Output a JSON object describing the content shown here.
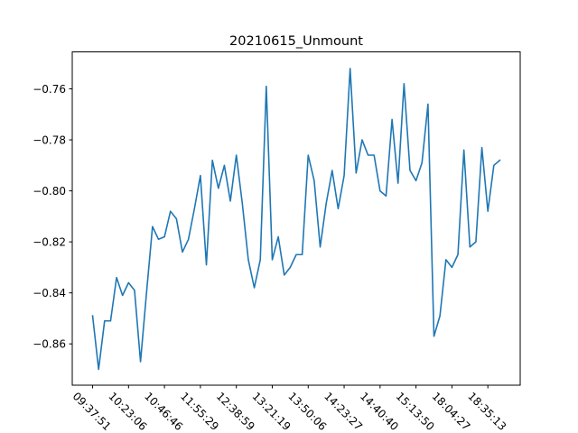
{
  "chart_data": {
    "type": "line",
    "title": "20210615_Unmount",
    "xlabel": "",
    "ylabel": "",
    "x_tick_labels": [
      "09:37:51",
      "10:23:06",
      "10:46:46",
      "11:55:29",
      "12:38:59",
      "13:21:19",
      "13:50:06",
      "14:23:27",
      "14:40:40",
      "15:13:50",
      "18:04:27",
      "18:35:13"
    ],
    "x_tick_every": 6,
    "ylim": [
      -0.8762,
      -0.7455
    ],
    "y_ticks": [
      -0.76,
      -0.78,
      -0.8,
      -0.82,
      -0.84,
      -0.86
    ],
    "y_tick_labels": [
      "−0.76",
      "−0.78",
      "−0.80",
      "−0.82",
      "−0.84",
      "−0.86"
    ],
    "grid": false,
    "legend": "none",
    "line_color": "#1f77b4",
    "series": [
      {
        "values": [
          -0.849,
          -0.87,
          -0.851,
          -0.851,
          -0.834,
          -0.841,
          -0.836,
          -0.839,
          -0.867,
          -0.84,
          -0.814,
          -0.819,
          -0.818,
          -0.808,
          -0.811,
          -0.824,
          -0.819,
          -0.807,
          -0.794,
          -0.829,
          -0.788,
          -0.799,
          -0.79,
          -0.804,
          -0.786,
          -0.805,
          -0.827,
          -0.838,
          -0.827,
          -0.759,
          -0.827,
          -0.818,
          -0.833,
          -0.83,
          -0.825,
          -0.825,
          -0.786,
          -0.796,
          -0.822,
          -0.805,
          -0.792,
          -0.807,
          -0.794,
          -0.752,
          -0.793,
          -0.78,
          -0.786,
          -0.786,
          -0.8,
          -0.802,
          -0.772,
          -0.797,
          -0.758,
          -0.792,
          -0.796,
          -0.789,
          -0.766,
          -0.857,
          -0.849,
          -0.827,
          -0.83,
          -0.825,
          -0.784,
          -0.822,
          -0.82,
          -0.783,
          -0.808,
          -0.79,
          -0.788
        ]
      }
    ]
  }
}
